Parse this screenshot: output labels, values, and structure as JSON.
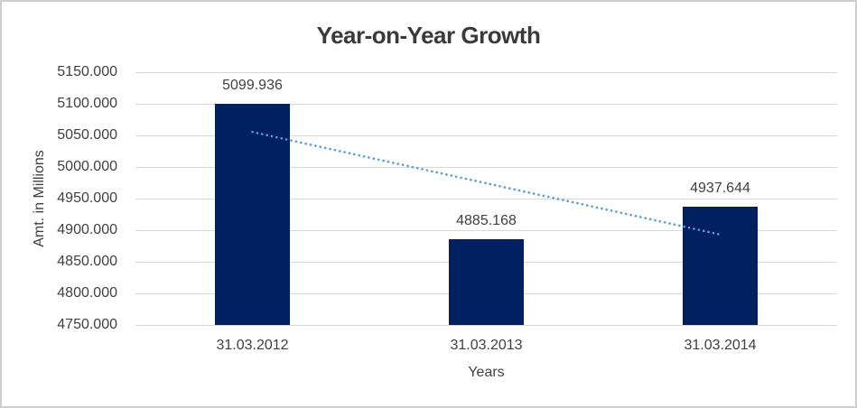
{
  "chart": {
    "title": "Year-on-Year Growth",
    "y_axis_title": "Amt. in Millions",
    "x_axis_title": "Years"
  },
  "chart_data": {
    "type": "bar",
    "title": "Year-on-Year Growth",
    "categories": [
      "31.03.2012",
      "31.03.2013",
      "31.03.2014"
    ],
    "values": [
      5099.936,
      4885.168,
      4937.644
    ],
    "data_labels": [
      "5099.936",
      "4885.168",
      "4937.644"
    ],
    "xlabel": "Years",
    "ylabel": "Amt. in Millions",
    "ylim": [
      4750,
      5150
    ],
    "ytick_values": [
      5150,
      5100,
      5050,
      5000,
      4950,
      4900,
      4850,
      4800,
      4750
    ],
    "ytick_labels": [
      "5150.000",
      "5100.000",
      "5050.000",
      "5000.000",
      "4950.000",
      "4900.000",
      "4850.000",
      "4800.000",
      "4750.000"
    ],
    "grid": true,
    "legend": "none",
    "bar_color": "#002060",
    "grid_color": "#d9d9d9",
    "text_color": "#404040",
    "trendline": {
      "type": "linear",
      "style": "dotted",
      "color": "#5B9BD5",
      "start_value": 5055.4,
      "end_value": 4893.1
    }
  }
}
